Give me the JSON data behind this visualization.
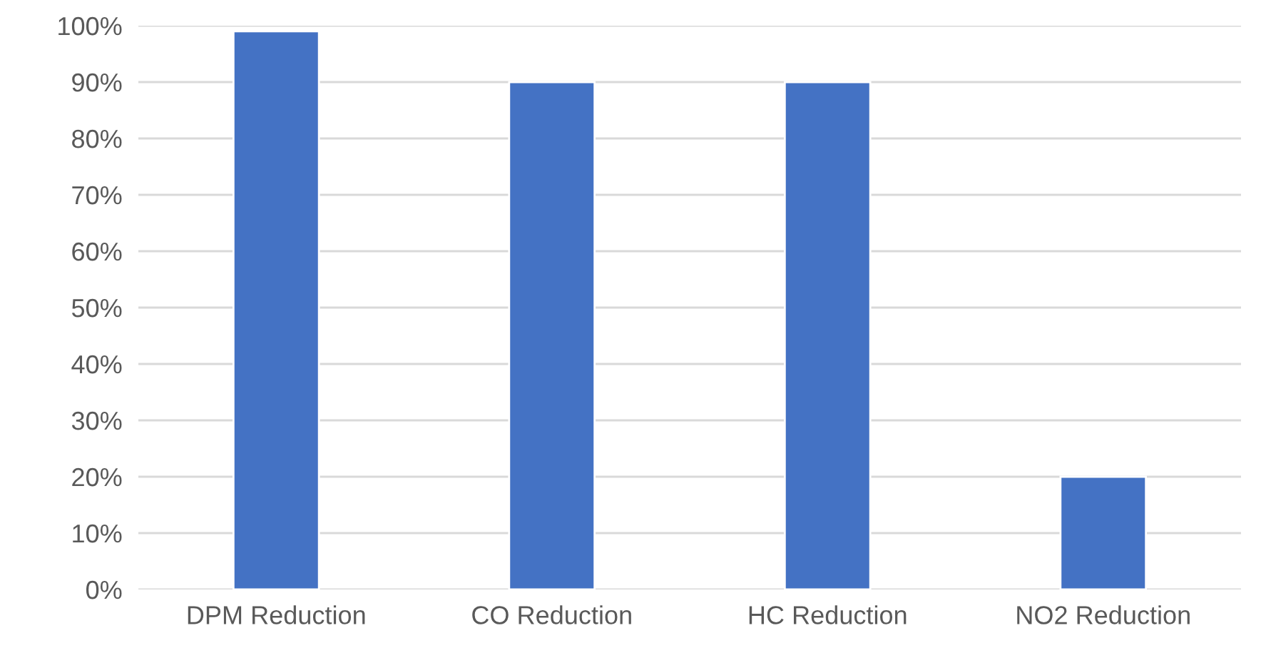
{
  "chart_data": {
    "type": "bar",
    "categories": [
      "DPM Reduction",
      "CO Reduction",
      "HC Reduction",
      "NO2 Reduction"
    ],
    "values": [
      99,
      90,
      90,
      20
    ],
    "color": "#4472c4",
    "ylim": [
      0,
      100
    ],
    "yticks": [
      {
        "value": 0,
        "label": "0%"
      },
      {
        "value": 10,
        "label": "10%"
      },
      {
        "value": 20,
        "label": "20%"
      },
      {
        "value": 30,
        "label": "30%"
      },
      {
        "value": 40,
        "label": "40%"
      },
      {
        "value": 50,
        "label": "50%"
      },
      {
        "value": 60,
        "label": "60%"
      },
      {
        "value": 70,
        "label": "70%"
      },
      {
        "value": 80,
        "label": "80%"
      },
      {
        "value": 90,
        "label": "90%"
      },
      {
        "value": 100,
        "label": "100%"
      }
    ],
    "grid": "y",
    "legend": false
  }
}
